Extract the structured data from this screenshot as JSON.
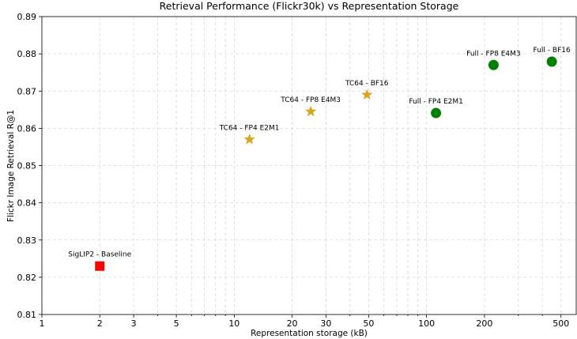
{
  "chart_data": {
    "type": "scatter",
    "title": "Retrieval Performance (Flickr30k) vs Representation Storage",
    "x_label": "Representation storage (kB)",
    "y_label": "Flickr Image Retrieval R@1",
    "x_scale": "log",
    "grid": true,
    "xlim": [
      1,
      600
    ],
    "ylim": [
      0.81,
      0.89
    ],
    "xticks": [
      1,
      2,
      3,
      5,
      10,
      20,
      30,
      50,
      100,
      200,
      500
    ],
    "xminorticks": [
      4,
      6,
      7,
      8,
      9,
      40,
      60,
      70,
      80,
      90,
      300,
      400
    ],
    "yticks": [
      0.81,
      0.82,
      0.83,
      0.84,
      0.85,
      0.86,
      0.87,
      0.88,
      0.89
    ],
    "points": [
      {
        "label": "SigLIP2 - Baseline",
        "x": 2,
        "y": 0.823,
        "color": "#ff0000",
        "marker": "square"
      },
      {
        "label": "TC64 - FP4 E2M1",
        "x": 12,
        "y": 0.857,
        "color": "#daa520",
        "marker": "star"
      },
      {
        "label": "TC64 - FP8 E4M3",
        "x": 25,
        "y": 0.8645,
        "color": "#daa520",
        "marker": "star"
      },
      {
        "label": "TC64 - BF16",
        "x": 49,
        "y": 0.869,
        "color": "#daa520",
        "marker": "star"
      },
      {
        "label": "Full - FP4 E2M1",
        "x": 112,
        "y": 0.8641,
        "color": "#008000",
        "marker": "circle"
      },
      {
        "label": "Full - FP8 E4M3",
        "x": 223,
        "y": 0.877,
        "color": "#008000",
        "marker": "circle"
      },
      {
        "label": "Full - BF16",
        "x": 448,
        "y": 0.8779,
        "color": "#008000",
        "marker": "circle"
      }
    ]
  }
}
